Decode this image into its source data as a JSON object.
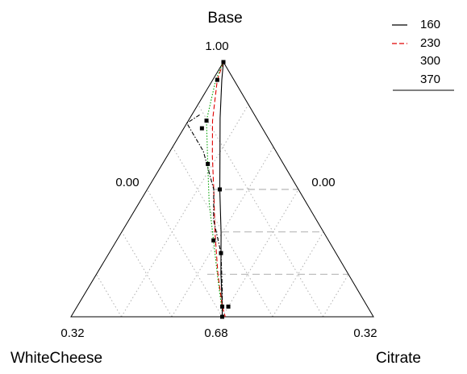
{
  "chart_data": {
    "type": "ternary-line",
    "vertices": {
      "top": "Base",
      "bottom_left": "WhiteCheese",
      "bottom_right": "Citrate"
    },
    "tick_labels": {
      "top_vertex": "1.00",
      "left_edge_mid": "0.00",
      "right_edge_mid": "0.00",
      "bottom_left": "0.32",
      "bottom_mid": "0.68",
      "bottom_right": "0.32"
    },
    "legend": {
      "placement": "top-right",
      "entries": [
        {
          "label": "160",
          "color": "#000000",
          "dash": "solid"
        },
        {
          "label": "230",
          "color": "#e00000",
          "dash": "dashed"
        },
        {
          "label": "300",
          "color": "#00a000",
          "dash": "dotted"
        },
        {
          "label": "370",
          "color": "#000000",
          "dash": "dashdot"
        }
      ]
    },
    "grid": true,
    "series": [
      {
        "name": "160",
        "points": [
          {
            "base": 1.0,
            "whitecheese": 0.0
          },
          {
            "base": 0.93,
            "whitecheese": 0.04
          },
          {
            "base": 0.78,
            "whitecheese": 0.12
          },
          {
            "base": 0.62,
            "whitecheese": 0.2
          },
          {
            "base": 0.5,
            "whitecheese": 0.26
          },
          {
            "base": 0.33,
            "whitecheese": 0.34
          },
          {
            "base": 0.17,
            "whitecheese": 0.42
          },
          {
            "base": 0.04,
            "whitecheese": 0.48
          },
          {
            "base": 0.0,
            "whitecheese": 0.5
          }
        ],
        "markers": [
          {
            "base": 1.0,
            "whitecheese": 0.0
          },
          {
            "base": 0.5,
            "whitecheese": 0.26
          },
          {
            "base": 0.0,
            "whitecheese": 0.5
          }
        ]
      },
      {
        "name": "230",
        "points": [
          {
            "base": 1.0,
            "whitecheese": 0.0
          },
          {
            "base": 0.93,
            "whitecheese": 0.055
          },
          {
            "base": 0.77,
            "whitecheese": 0.15
          },
          {
            "base": 0.63,
            "whitecheese": 0.22
          },
          {
            "base": 0.5,
            "whitecheese": 0.28
          },
          {
            "base": 0.33,
            "whitecheese": 0.36
          },
          {
            "base": 0.17,
            "whitecheese": 0.43
          },
          {
            "base": 0.04,
            "whitecheese": 0.48
          },
          {
            "base": 0.0,
            "whitecheese": 0.49
          }
        ],
        "markers": [
          {
            "base": 0.93,
            "whitecheese": 0.055
          },
          {
            "base": 0.04,
            "whitecheese": 0.48
          }
        ]
      },
      {
        "name": "300",
        "points": [
          {
            "base": 1.0,
            "whitecheese": 0.0
          },
          {
            "base": 0.93,
            "whitecheese": 0.06
          },
          {
            "base": 0.77,
            "whitecheese": 0.17
          },
          {
            "base": 0.6,
            "whitecheese": 0.25
          },
          {
            "base": 0.45,
            "whitecheese": 0.32
          },
          {
            "base": 0.3,
            "whitecheese": 0.38
          },
          {
            "base": 0.15,
            "whitecheese": 0.44
          },
          {
            "base": 0.02,
            "whitecheese": 0.49
          }
        ],
        "markers": [
          {
            "base": 0.77,
            "whitecheese": 0.17
          },
          {
            "base": 0.6,
            "whitecheese": 0.25
          },
          {
            "base": 0.3,
            "whitecheese": 0.38
          }
        ]
      },
      {
        "name": "370",
        "points": [
          {
            "base": 0.83,
            "whitecheese": 0.2
          },
          {
            "base": 0.76,
            "whitecheese": 0.24
          },
          {
            "base": 0.65,
            "whitecheese": 0.24
          },
          {
            "base": 0.5,
            "whitecheese": 0.28
          },
          {
            "base": 0.38,
            "whitecheese": 0.34
          },
          {
            "base": 0.25,
            "whitecheese": 0.38
          },
          {
            "base": 0.1,
            "whitecheese": 0.45
          },
          {
            "base": 0.0,
            "whitecheese": 0.5
          }
        ],
        "markers": [
          {
            "base": 0.74,
            "whitecheese": 0.2
          },
          {
            "base": 0.25,
            "whitecheese": 0.38
          },
          {
            "base": 0.04,
            "whitecheese": 0.46
          }
        ]
      }
    ]
  }
}
